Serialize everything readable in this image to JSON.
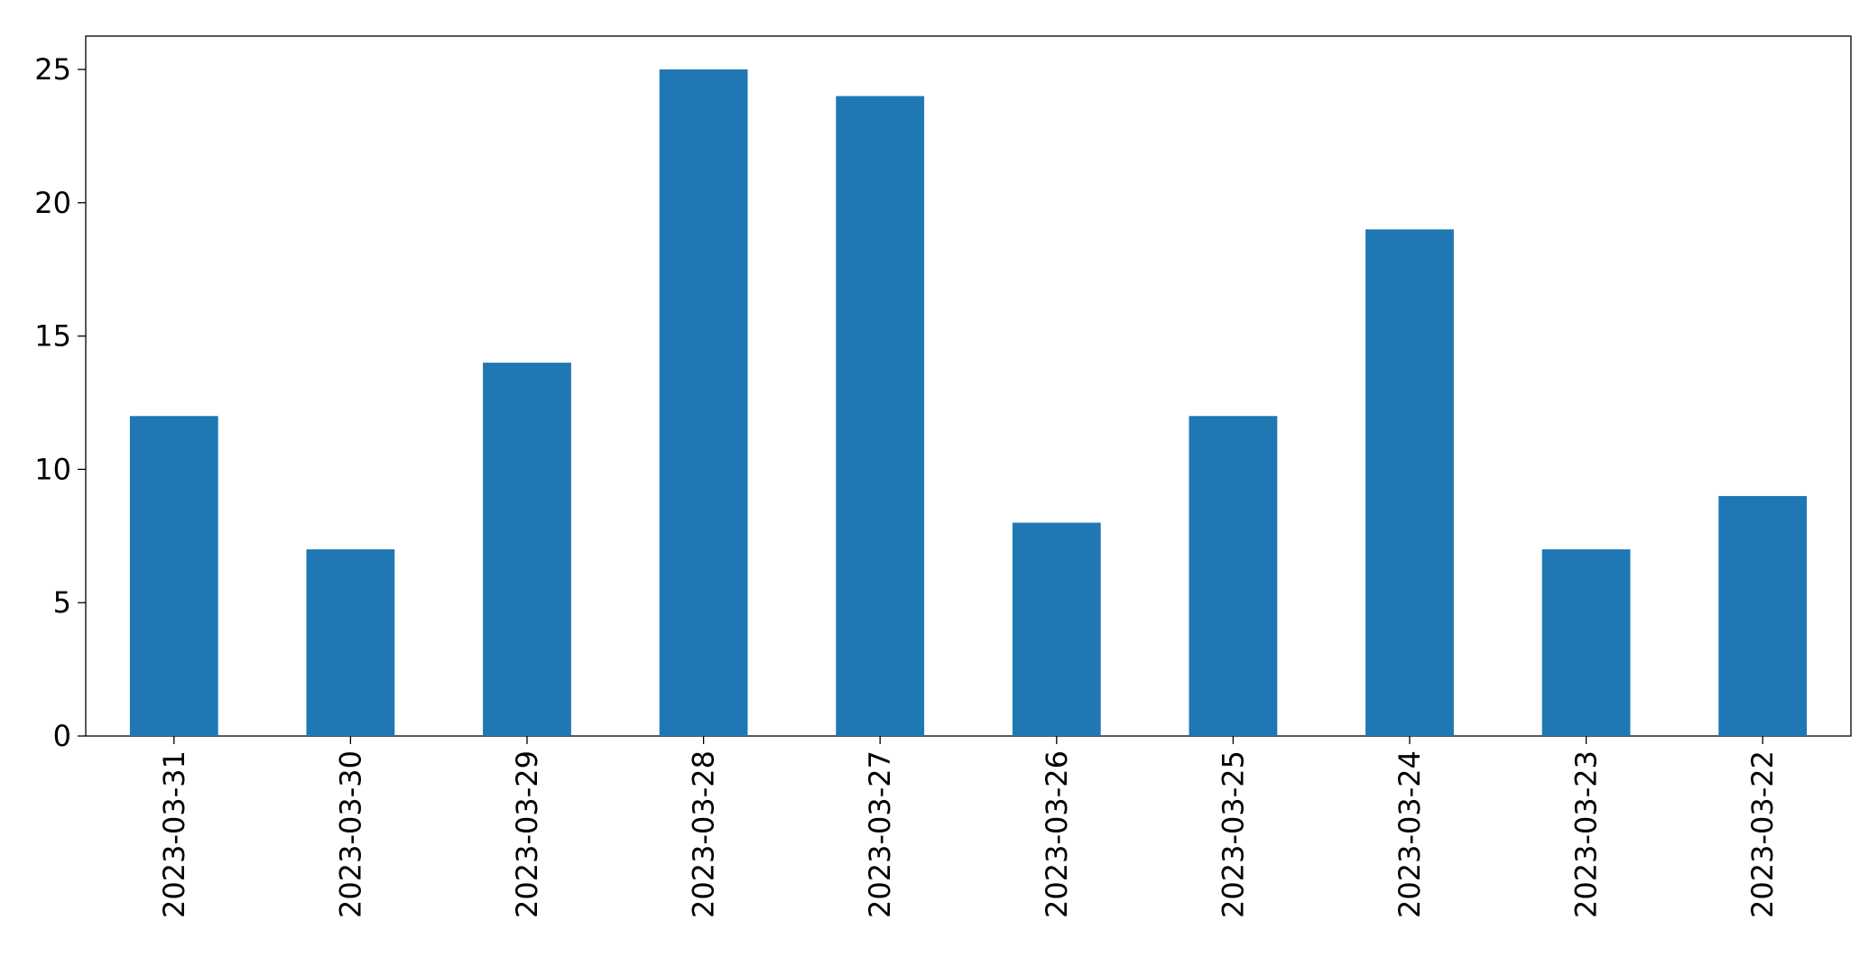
{
  "chart_data": {
    "type": "bar",
    "categories": [
      "2023-03-31",
      "2023-03-30",
      "2023-03-29",
      "2023-03-28",
      "2023-03-27",
      "2023-03-26",
      "2023-03-25",
      "2023-03-24",
      "2023-03-23",
      "2023-03-22"
    ],
    "values": [
      12,
      7,
      14,
      25,
      24,
      8,
      12,
      19,
      7,
      9
    ],
    "color": "#1f77b4",
    "ylim": [
      0,
      26.25
    ],
    "yticks": [
      0,
      5,
      10,
      15,
      20,
      25
    ],
    "grid": false
  }
}
